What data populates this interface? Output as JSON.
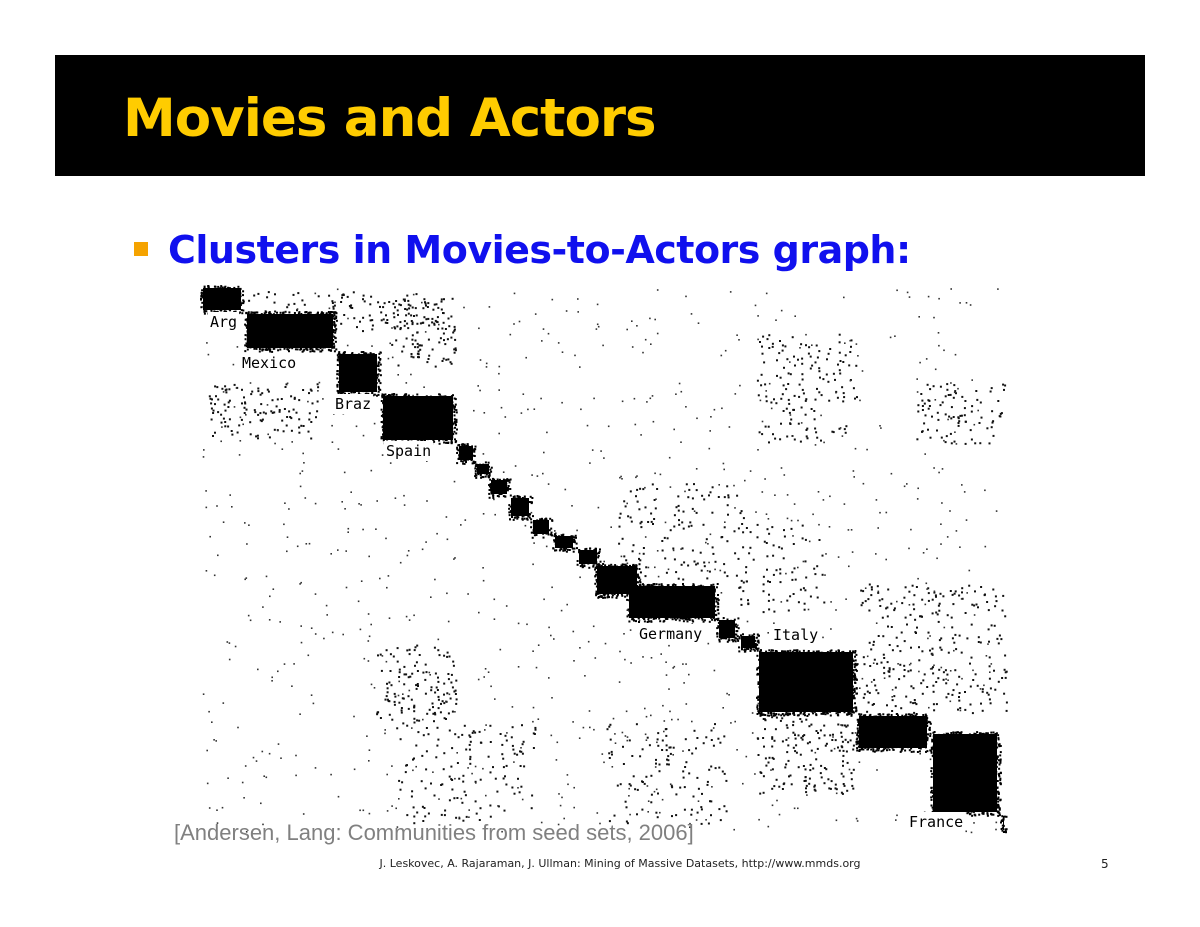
{
  "slide": {
    "title": "Movies and Actors",
    "bullet": "Clusters in Movies-to-Actors graph:",
    "citation": "[Andersen, Lang: Communities from seed sets, 2006]",
    "footer": "J. Leskovec, A. Rajaraman, J. Ullman: Mining of Massive Datasets, http://www.mmds.org",
    "page_number": "5"
  },
  "figure": {
    "labels": [
      "Arg",
      "Mexico",
      "Braz",
      "Spain",
      "Germany",
      "Italy",
      "France"
    ]
  },
  "colors": {
    "title_background": "#000000",
    "title_text": "#ffcc00",
    "bullet_text": "#1010ee",
    "bullet_square": "#f5a300",
    "citation_text": "#808080"
  }
}
